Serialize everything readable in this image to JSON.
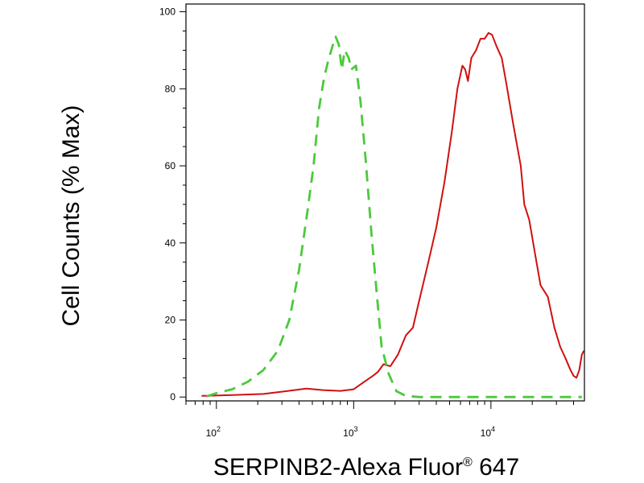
{
  "chart_data": {
    "type": "line",
    "title": "",
    "xlabel": "SERPINB2-Alexa Fluor",
    "xlabel_superscript": "®",
    "xlabel_suffix": " 647",
    "ylabel": "Cell Counts (% Max)",
    "x_scale": "log",
    "xlim": [
      60,
      48000
    ],
    "ylim": [
      -1,
      102
    ],
    "x_ticks": [
      {
        "value": 100,
        "base": "10",
        "exp": "2"
      },
      {
        "value": 1000,
        "base": "10",
        "exp": "3"
      },
      {
        "value": 10000,
        "base": "10",
        "exp": "4"
      }
    ],
    "y_ticks": [
      0,
      20,
      40,
      60,
      80,
      100
    ],
    "grid": false,
    "legend": "none",
    "series": [
      {
        "color": "#d01010",
        "dash": "solid",
        "points": [
          [
            78,
            0.3
          ],
          [
            130,
            0.5
          ],
          [
            220,
            0.8
          ],
          [
            320,
            1.5
          ],
          [
            450,
            2.2
          ],
          [
            600,
            1.8
          ],
          [
            800,
            1.6
          ],
          [
            1000,
            2.0
          ],
          [
            1200,
            4
          ],
          [
            1380,
            5.5
          ],
          [
            1500,
            6.5
          ],
          [
            1650,
            8.5
          ],
          [
            1850,
            8
          ],
          [
            2100,
            11
          ],
          [
            2400,
            16
          ],
          [
            2700,
            18
          ],
          [
            3000,
            25
          ],
          [
            3500,
            35
          ],
          [
            4000,
            44
          ],
          [
            4600,
            56
          ],
          [
            5200,
            69
          ],
          [
            5700,
            80
          ],
          [
            6200,
            86
          ],
          [
            6500,
            85
          ],
          [
            6800,
            82
          ],
          [
            7200,
            88
          ],
          [
            7800,
            90
          ],
          [
            8400,
            93
          ],
          [
            9000,
            93
          ],
          [
            9600,
            94.5
          ],
          [
            10200,
            94
          ],
          [
            11000,
            91
          ],
          [
            12000,
            88
          ],
          [
            13000,
            81
          ],
          [
            14500,
            71
          ],
          [
            16500,
            60
          ],
          [
            17500,
            50
          ],
          [
            19000,
            46
          ],
          [
            21000,
            37
          ],
          [
            23000,
            29
          ],
          [
            26000,
            26
          ],
          [
            29000,
            18
          ],
          [
            32000,
            13
          ],
          [
            35000,
            10
          ],
          [
            38000,
            7
          ],
          [
            40000,
            5.5
          ],
          [
            42000,
            5
          ],
          [
            44000,
            7
          ],
          [
            46000,
            11
          ],
          [
            47500,
            12
          ]
        ]
      },
      {
        "color": "#4cc93c",
        "dash": "dashed",
        "points": [
          [
            85,
            0.2
          ],
          [
            100,
            1
          ],
          [
            130,
            2
          ],
          [
            170,
            4
          ],
          [
            220,
            7
          ],
          [
            280,
            12
          ],
          [
            340,
            20
          ],
          [
            400,
            33
          ],
          [
            460,
            48
          ],
          [
            510,
            60
          ],
          [
            560,
            75
          ],
          [
            610,
            83
          ],
          [
            650,
            87
          ],
          [
            700,
            91
          ],
          [
            740,
            93.5
          ],
          [
            780,
            91.5
          ],
          [
            820,
            85
          ],
          [
            860,
            90
          ],
          [
            920,
            88
          ],
          [
            960,
            85
          ],
          [
            1040,
            86
          ],
          [
            1120,
            77
          ],
          [
            1220,
            62
          ],
          [
            1350,
            42
          ],
          [
            1480,
            26
          ],
          [
            1600,
            13
          ],
          [
            1800,
            6
          ],
          [
            2050,
            1.5
          ],
          [
            2400,
            0.3
          ],
          [
            3000,
            0
          ],
          [
            6000,
            0
          ],
          [
            12000,
            0
          ],
          [
            24000,
            0
          ],
          [
            46000,
            0
          ]
        ]
      }
    ]
  }
}
